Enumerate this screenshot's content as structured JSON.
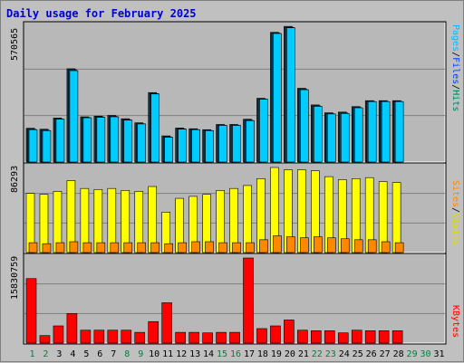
{
  "title": "Daily usage for February 2025",
  "colors": {
    "background": "#c0c0c0",
    "plot_background": "#b8b8b8",
    "pages": "#00ccff",
    "pages_shadow": "#005077",
    "hits": "#00ccff",
    "hits_shadow": "#1a3d4d",
    "visits": "#ffff00",
    "sites": "#ff8800",
    "kbytes": "#ff0000",
    "weekday_label": "#000000",
    "weekend_label": "#008040",
    "legend_pages": "#00bbff",
    "legend_files": "#0040ff",
    "legend_hits": "#008060",
    "legend_visits": "#dddd00",
    "legend_sites": "#ff8800",
    "legend_kbytes": "#ff0000"
  },
  "chart_data": [
    {
      "type": "bar",
      "panel": "hits-files-pages",
      "max_label": "570565",
      "legend": [
        "Pages",
        "/",
        "Files",
        "/",
        "Hits"
      ],
      "ylim": [
        0,
        570565
      ],
      "categories": [
        "1",
        "2",
        "3",
        "4",
        "5",
        "6",
        "7",
        "8",
        "9",
        "10",
        "11",
        "12",
        "13",
        "14",
        "15",
        "16",
        "17",
        "18",
        "19",
        "20",
        "21",
        "22",
        "23",
        "24",
        "25",
        "26",
        "27",
        "28"
      ],
      "series": [
        {
          "name": "Hits",
          "values": [
            142000,
            138000,
            185000,
            392000,
            190000,
            193000,
            196000,
            182000,
            165000,
            292000,
            110000,
            143000,
            140000,
            136000,
            158000,
            158000,
            180000,
            268000,
            545000,
            570000,
            310000,
            240000,
            207000,
            210000,
            233000,
            258000,
            258000,
            258000
          ]
        },
        {
          "name": "Files",
          "values": [
            138000,
            134000,
            181000,
            388000,
            187000,
            190000,
            192000,
            178000,
            161000,
            288000,
            106000,
            140000,
            137000,
            133000,
            155000,
            155000,
            176000,
            265000,
            542000,
            566000,
            306000,
            236000,
            203000,
            206000,
            229000,
            255000,
            255000,
            255000
          ]
        },
        {
          "name": "Pages",
          "values": [
            136000,
            132000,
            180000,
            384000,
            186000,
            188000,
            190000,
            176000,
            160000,
            286000,
            104000,
            138000,
            136000,
            132000,
            154000,
            154000,
            174000,
            264000,
            540000,
            564000,
            304000,
            234000,
            202000,
            204000,
            228000,
            254000,
            254000,
            254000
          ]
        }
      ]
    },
    {
      "type": "bar",
      "panel": "visits-sites",
      "max_label": "86293",
      "legend": [
        "Sites",
        "/",
        "Visits"
      ],
      "ylim": [
        0,
        86293
      ],
      "categories": [
        "1",
        "2",
        "3",
        "4",
        "5",
        "6",
        "7",
        "8",
        "9",
        "10",
        "11",
        "12",
        "13",
        "14",
        "15",
        "16",
        "17",
        "18",
        "19",
        "20",
        "21",
        "22",
        "23",
        "24",
        "25",
        "26",
        "27",
        "28"
      ],
      "series": [
        {
          "name": "Visits",
          "values": [
            60000,
            59000,
            62000,
            73000,
            65000,
            64000,
            65000,
            63000,
            62000,
            67000,
            41000,
            55000,
            57000,
            59000,
            63000,
            65000,
            68000,
            75000,
            86293,
            84000,
            84000,
            83000,
            77000,
            74000,
            75000,
            76000,
            72000,
            71000
          ]
        },
        {
          "name": "Sites",
          "values": [
            10000,
            9000,
            10000,
            11000,
            10000,
            10000,
            10000,
            10000,
            10000,
            10000,
            9000,
            10000,
            11000,
            11000,
            10000,
            10000,
            10000,
            13000,
            17000,
            16000,
            15000,
            16000,
            15000,
            14000,
            13000,
            13000,
            11000,
            10000
          ]
        }
      ]
    },
    {
      "type": "bar",
      "panel": "kbytes",
      "max_label": "15830759",
      "legend": [
        "KBytes"
      ],
      "ylim": [
        0,
        15830759
      ],
      "categories": [
        "1",
        "2",
        "3",
        "4",
        "5",
        "6",
        "7",
        "8",
        "9",
        "10",
        "11",
        "12",
        "13",
        "14",
        "15",
        "16",
        "17",
        "18",
        "19",
        "20",
        "21",
        "22",
        "23",
        "24",
        "25",
        "26",
        "27",
        "28"
      ],
      "series": [
        {
          "name": "KBytes",
          "values": [
            12000000,
            1400000,
            3200000,
            5500000,
            2400000,
            2400000,
            2400000,
            2400000,
            2000000,
            4000000,
            7500000,
            2000000,
            2000000,
            1900000,
            2000000,
            2000000,
            15830759,
            2700000,
            3200000,
            4300000,
            2400000,
            2300000,
            2300000,
            1900000,
            2400000,
            2300000,
            2300000,
            2300000
          ]
        }
      ]
    }
  ],
  "x_axis": {
    "labels": [
      "1",
      "2",
      "3",
      "4",
      "5",
      "6",
      "7",
      "8",
      "9",
      "10",
      "11",
      "12",
      "13",
      "14",
      "15",
      "16",
      "17",
      "18",
      "19",
      "20",
      "21",
      "22",
      "23",
      "24",
      "25",
      "26",
      "27",
      "28",
      "29",
      "30",
      "31"
    ],
    "weekend": [
      1,
      2,
      8,
      9,
      15,
      16,
      22,
      23,
      29,
      30
    ]
  }
}
